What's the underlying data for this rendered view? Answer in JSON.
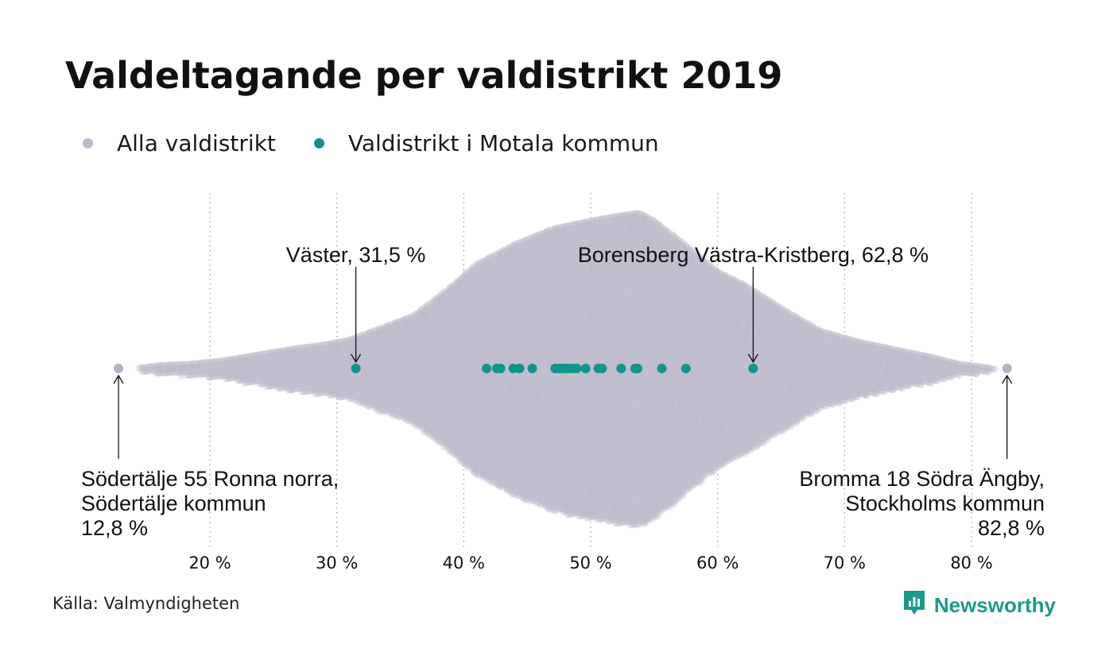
{
  "title": "Valdeltagande per valdistrikt 2019",
  "legend": [
    {
      "label": "Alla valdistrikt",
      "color": "#bdbbc9"
    },
    {
      "label": "Valdistrikt i Motala kommun",
      "color": "#11958a"
    }
  ],
  "source": "Källa: Valmyndigheten",
  "brand": {
    "name": "Newsworthy",
    "color": "#1d9a8c",
    "icon": "newsworthy-logo-icon"
  },
  "chart_data": {
    "type": "scatter",
    "xlabel": "",
    "ylabel": "",
    "xlim": [
      10,
      85
    ],
    "xticks": [
      20,
      30,
      40,
      50,
      60,
      70,
      80
    ],
    "tick_labels": [
      "20 %",
      "30 %",
      "40 %",
      "50 %",
      "60 %",
      "70 %",
      "80 %"
    ],
    "grid": "vertical dotted",
    "legend_position": "top-left",
    "series": [
      {
        "name": "Alla valdistrikt",
        "color": "#bdbbc9",
        "distribution": "beeswarm of all districts, densest around 53 %",
        "extremes": [
          12.8,
          82.8
        ]
      },
      {
        "name": "Valdistrikt i Motala kommun",
        "color": "#11958a",
        "values": [
          31.5,
          41.8,
          42.6,
          42.9,
          43.9,
          44.4,
          45.4,
          47.2,
          47.5,
          47.7,
          47.9,
          48.1,
          48.4,
          48.7,
          48.9,
          49.6,
          50.6,
          50.9,
          52.4,
          53.5,
          53.7,
          55.6,
          57.5,
          62.8
        ]
      }
    ],
    "annotations": [
      {
        "lines": [
          "Väster, 31,5 %"
        ],
        "value": 31.5,
        "side": "above",
        "align": "middle"
      },
      {
        "lines": [
          "Borensberg Västra-Kristberg, 62,8 %"
        ],
        "value": 62.8,
        "side": "above",
        "align": "middle"
      },
      {
        "lines": [
          "Södertälje 55 Ronna norra,",
          "Södertälje kommun",
          "12,8 %"
        ],
        "value": 12.8,
        "side": "below",
        "align": "start"
      },
      {
        "lines": [
          "Bromma 18 Södra Ängby,",
          "Stockholms kommun",
          "82,8 %"
        ],
        "value": 82.8,
        "side": "below",
        "align": "end"
      }
    ]
  }
}
